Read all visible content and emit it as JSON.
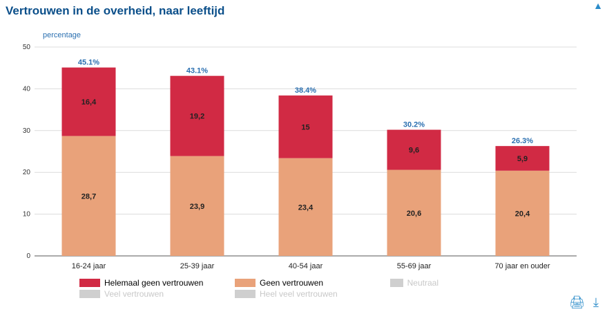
{
  "title": "Vertrouwen in de overheid, naar leeftijd",
  "chart_data": {
    "type": "bar",
    "stacked": true,
    "ylabel": "percentage",
    "ylim": [
      0,
      50
    ],
    "yticks": [
      0,
      10,
      20,
      30,
      40,
      50
    ],
    "categories": [
      "16-24 jaar",
      "25-39 jaar",
      "40-54 jaar",
      "55-69 jaar",
      "70 jaar en ouder"
    ],
    "series": [
      {
        "name": "Geen vertrouwen",
        "color": "#e9a27a",
        "values": [
          28.7,
          23.9,
          23.4,
          20.6,
          20.4
        ],
        "labels": [
          "28,7",
          "23,9",
          "23,4",
          "20,6",
          "20,4"
        ]
      },
      {
        "name": "Helemaal geen vertrouwen",
        "color": "#d12a44",
        "values": [
          16.4,
          19.2,
          15.0,
          9.6,
          5.9
        ],
        "labels": [
          "16,4",
          "19,2",
          "15",
          "9,6",
          "5,9"
        ]
      }
    ],
    "totals": [
      "45.1%",
      "43.1%",
      "38.4%",
      "30.2%",
      "26.3%"
    ],
    "total_values": [
      45.1,
      43.1,
      38.4,
      30.2,
      26.3
    ],
    "grid": true
  },
  "legend": [
    {
      "label": "Helemaal geen vertrouwen",
      "color": "#d12a44",
      "active": true
    },
    {
      "label": "Geen vertrouwen",
      "color": "#e9a27a",
      "active": true
    },
    {
      "label": "Neutraal",
      "color": "#cfcfcf",
      "active": false
    },
    {
      "label": "Veel vertrouwen",
      "color": "#cfcfcf",
      "active": false
    },
    {
      "label": "Heel veel vertrouwen",
      "color": "#cfcfcf",
      "active": false
    }
  ],
  "icons": {
    "top": "chart-menu-icon",
    "print": "print-icon",
    "download": "download-icon"
  }
}
